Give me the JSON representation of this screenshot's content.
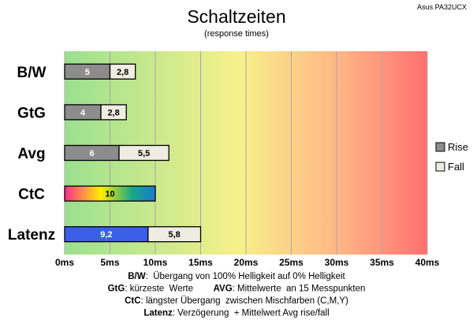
{
  "corner_label": "Asus PA32UCX",
  "chart_data": {
    "type": "bar",
    "orientation": "horizontal",
    "stacked": true,
    "title": "Schaltzeiten",
    "subtitle": "(response times)",
    "categories": [
      "B/W",
      "GtG",
      "Avg",
      "CtC",
      "Latenz"
    ],
    "series": [
      {
        "name": "Rise",
        "values": [
          5,
          4,
          6,
          10,
          9.2
        ],
        "labels": [
          "5",
          "4",
          "6",
          "10",
          "9,2"
        ]
      },
      {
        "name": "Fall",
        "values": [
          2.8,
          2.8,
          5.5,
          null,
          5.8
        ],
        "labels": [
          "2,8",
          "2,8",
          "5,5",
          "",
          "5,8"
        ]
      }
    ],
    "xlim": [
      0,
      40
    ],
    "xticks": [
      0,
      5,
      10,
      15,
      20,
      25,
      30,
      35,
      40
    ],
    "xtick_labels": [
      "0ms",
      "5ms",
      "10ms",
      "15ms",
      "20ms",
      "25ms",
      "30ms",
      "35ms",
      "40ms"
    ],
    "grid": true,
    "legend_position": "right",
    "background": "gradient green-yellow-red",
    "colors": {
      "rise": "#8c8c8c",
      "fall": "#efece2",
      "latency_rise": "#3b5fe8",
      "ctc_gradient": [
        "#ff2d8f",
        "#ffee00",
        "#14a58a",
        "#1e7ad0"
      ],
      "bg_gradient": [
        "#9ae08f",
        "#f7f18c",
        "#ffb084",
        "#ff7070"
      ]
    }
  },
  "notes": [
    [
      {
        "text": "B/W",
        "bold": true
      },
      {
        "text": ":  Übergang von 100% Helligkeit auf 0% Helligkeit",
        "bold": false
      }
    ],
    [
      {
        "text": "GtG",
        "bold": true
      },
      {
        "text": ": kürzeste  Werte        ",
        "bold": false
      },
      {
        "text": "AVG",
        "bold": true
      },
      {
        "text": ": Mittelwerte  an 15 Messpunkten",
        "bold": false
      }
    ],
    [
      {
        "text": "CtC",
        "bold": true
      },
      {
        "text": ": längster Übergang  zwischen Mischfarben (C,M,Y)",
        "bold": false
      }
    ],
    [
      {
        "text": "Latenz",
        "bold": true
      },
      {
        "text": ": Verzögerung  + Mittelwert Avg rise/fall",
        "bold": false
      }
    ]
  ]
}
